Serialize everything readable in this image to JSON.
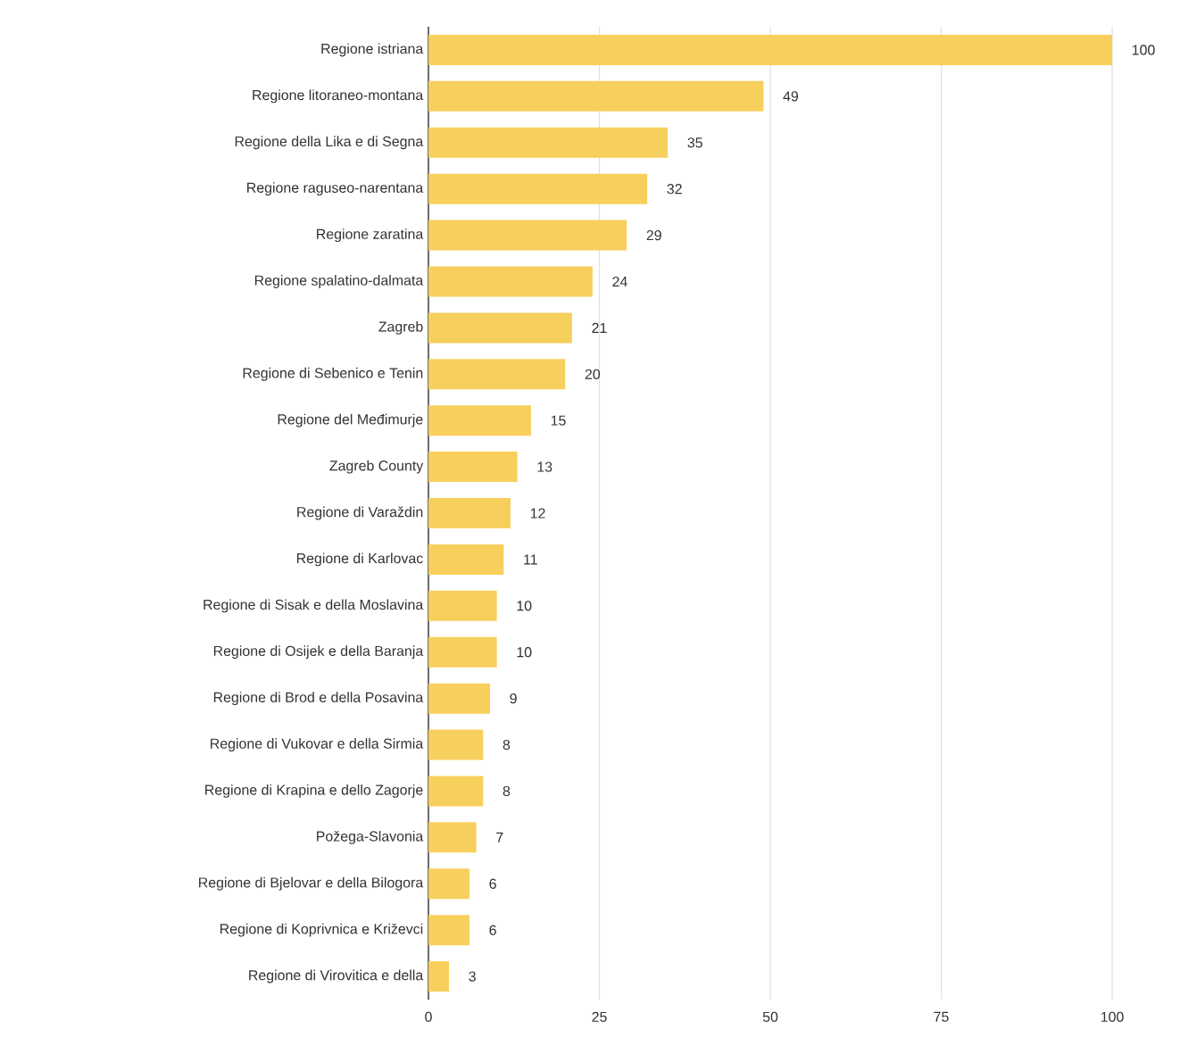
{
  "chart_data": {
    "type": "bar",
    "orientation": "horizontal",
    "categories": [
      "Regione istriana",
      "Regione litoraneo-montana",
      "Regione della Lika e di Segna",
      "Regione raguseo-narentana",
      "Regione zaratina",
      "Regione spalatino-dalmata",
      "Zagreb",
      "Regione di Sebenico e Tenin",
      "Regione del Međimurje",
      "Zagreb County",
      "Regione di Varaždin",
      "Regione di Karlovac",
      "Regione di Sisak e della Moslavina",
      "Regione di Osijek e della Baranja",
      "Regione di Brod e della Posavina",
      "Regione di Vukovar e della Sirmia",
      "Regione di Krapina e dello Zagorje",
      "Požega-Slavonia",
      "Regione di Bjelovar e della Bilogora",
      "Regione di Koprivnica e Križevci",
      "Regione di Virovitica e della"
    ],
    "values": [
      100,
      49,
      35,
      32,
      29,
      24,
      21,
      20,
      15,
      13,
      12,
      11,
      10,
      10,
      9,
      8,
      8,
      7,
      6,
      6,
      3
    ],
    "color": "#f7cf5c",
    "xlim": [
      0,
      100
    ],
    "xticks": [
      0,
      25,
      50,
      75,
      100
    ],
    "grid": "x",
    "data_labels": true
  }
}
